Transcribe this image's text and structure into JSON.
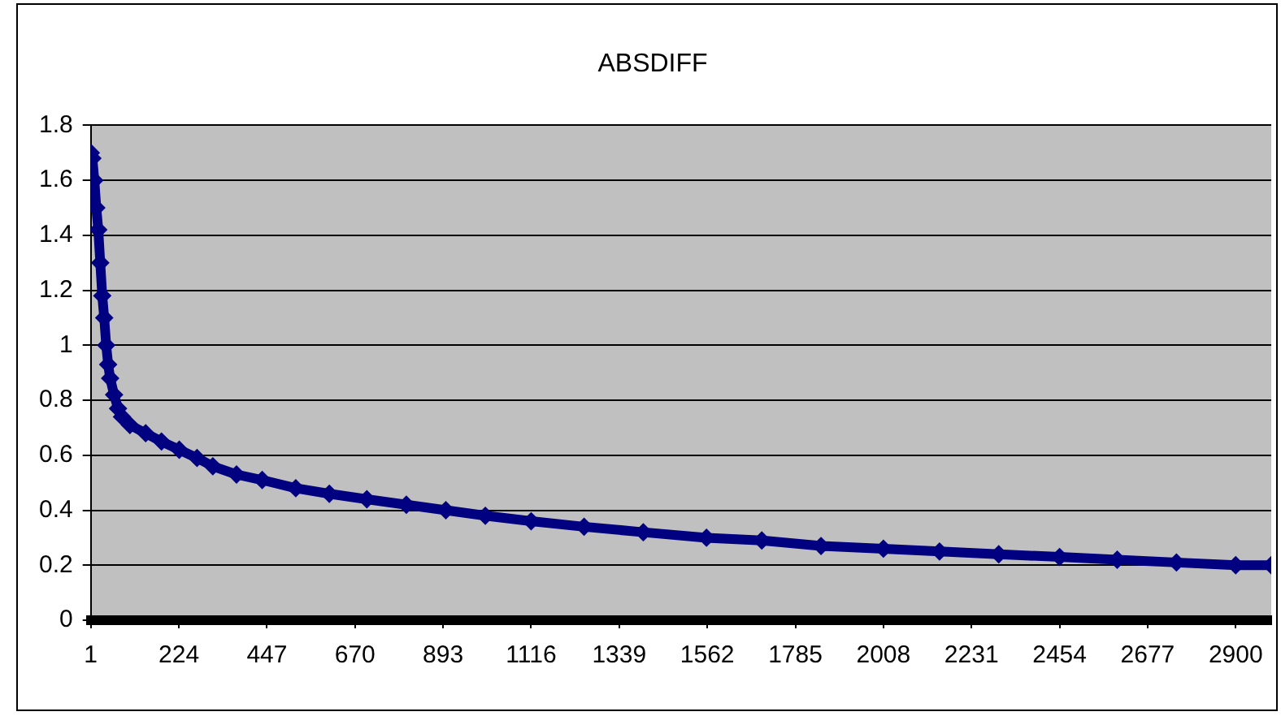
{
  "chart_data": {
    "type": "line",
    "title": "ABSDIFF",
    "xlim": [
      1,
      2990
    ],
    "xticks": [
      1,
      224,
      447,
      670,
      893,
      1116,
      1339,
      1562,
      1785,
      2008,
      2231,
      2454,
      2677,
      2900
    ],
    "ylim": [
      0,
      1.8
    ],
    "yticks": [
      0,
      0.2,
      0.4,
      0.6,
      0.8,
      1,
      1.2,
      1.4,
      1.6,
      1.8
    ],
    "grid": "y",
    "legend": false,
    "marker": "diamond",
    "line_style": "solid",
    "series": [
      {
        "color": "#000080",
        "x": [
          1,
          5,
          10,
          15,
          20,
          25,
          30,
          35,
          40,
          45,
          50,
          60,
          70,
          80,
          100,
          140,
          180,
          225,
          270,
          310,
          370,
          435,
          520,
          605,
          700,
          800,
          900,
          1000,
          1116,
          1250,
          1400,
          1560,
          1700,
          1850,
          2008,
          2150,
          2300,
          2454,
          2600,
          2750,
          2900,
          2990
        ],
        "values": [
          1.7,
          1.68,
          1.6,
          1.5,
          1.42,
          1.3,
          1.18,
          1.1,
          1.0,
          0.93,
          0.88,
          0.82,
          0.77,
          0.74,
          0.71,
          0.68,
          0.65,
          0.62,
          0.59,
          0.56,
          0.53,
          0.51,
          0.48,
          0.46,
          0.44,
          0.42,
          0.4,
          0.38,
          0.36,
          0.34,
          0.32,
          0.3,
          0.29,
          0.27,
          0.26,
          0.25,
          0.24,
          0.23,
          0.22,
          0.21,
          0.2,
          0.2
        ]
      }
    ]
  }
}
